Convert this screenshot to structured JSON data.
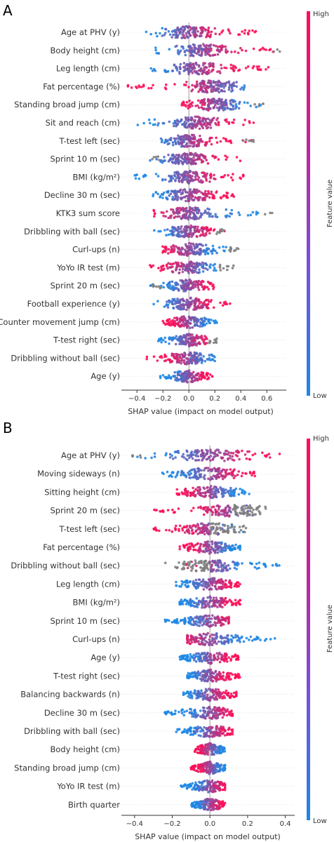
{
  "colors": {
    "low": "#1e88e5",
    "high": "#ff0d57",
    "missing": "#808080",
    "axis": "#333333",
    "zero_line": "#999999"
  },
  "chart_data": [
    {
      "type": "scatter",
      "panel": "A",
      "xlabel": "SHAP value (impact on model output)",
      "xlim": [
        -0.52,
        0.75
      ],
      "xticks": [
        -0.4,
        -0.2,
        0.0,
        0.2,
        0.4,
        0.6
      ],
      "xtick_labels": [
        "−0.4",
        "−0.2",
        "0.0",
        "0.2",
        "0.4",
        "0.6"
      ],
      "colorbar": {
        "label": "Feature value",
        "high": "High",
        "low": "Low"
      },
      "features": [
        {
          "name": "Age at PHV (y)",
          "min": -0.34,
          "max": 0.52,
          "split": 0.0,
          "lowSide": "neg"
        },
        {
          "name": "Body height (cm)",
          "min": -0.28,
          "max": 0.71,
          "split": 0.1,
          "lowSide": "neg",
          "grey": [
            0.65,
            0.72
          ]
        },
        {
          "name": "Leg length (cm)",
          "min": -0.31,
          "max": 0.62,
          "split": 0.05,
          "lowSide": "neg"
        },
        {
          "name": "Fat percentage (%)",
          "min": -0.48,
          "max": 0.44,
          "split": 0.18,
          "lowSide": "pos"
        },
        {
          "name": "Standing broad jump (cm)",
          "min": -0.08,
          "max": 0.58,
          "split": 0.2,
          "lowSide": "pos",
          "grey": [
            0.48,
            0.58
          ]
        },
        {
          "name": "Sit and reach (cm)",
          "min": -0.4,
          "max": 0.5,
          "split": 0.05,
          "lowSide": "neg"
        },
        {
          "name": "T-test left (sec)",
          "min": -0.22,
          "max": 0.5,
          "split": 0.0,
          "lowSide": "neg",
          "grey": [
            0.4,
            0.5
          ]
        },
        {
          "name": "Sprint 10 m (sec)",
          "min": -0.36,
          "max": 0.4,
          "split": 0.0,
          "lowSide": "neg",
          "grey": [
            -0.36,
            -0.22
          ]
        },
        {
          "name": "BMI (kg/m²)",
          "min": -0.42,
          "max": 0.42,
          "split": 0.0,
          "lowSide": "neg"
        },
        {
          "name": "Decline 30 m (sec)",
          "min": -0.3,
          "max": 0.35,
          "split": 0.0,
          "lowSide": "neg"
        },
        {
          "name": "KTK3 sum score",
          "min": -0.3,
          "max": 0.68,
          "split": 0.0,
          "lowSide": "pos",
          "grey": [
            0.57,
            0.68
          ]
        },
        {
          "name": "Dribbling with ball (sec)",
          "min": -0.28,
          "max": 0.28,
          "split": 0.0,
          "lowSide": "neg",
          "grey": [
            0.2,
            0.28
          ]
        },
        {
          "name": "Curl-ups (n)",
          "min": -0.24,
          "max": 0.38,
          "split": 0.0,
          "lowSide": "pos",
          "grey": [
            0.28,
            0.38
          ]
        },
        {
          "name": "YoYo IR test (m)",
          "min": -0.3,
          "max": 0.35,
          "split": 0.0,
          "lowSide": "pos",
          "grey": [
            0.22,
            0.35
          ]
        },
        {
          "name": "Sprint 20 m (sec)",
          "min": -0.3,
          "max": 0.2,
          "split": 0.0,
          "lowSide": "neg",
          "grey": [
            -0.3,
            -0.2
          ]
        },
        {
          "name": "Football experience (y)",
          "min": -0.28,
          "max": 0.32,
          "split": 0.0,
          "lowSide": "neg"
        },
        {
          "name": "Counter movement jump (cm)",
          "min": -0.2,
          "max": 0.22,
          "split": 0.0,
          "lowSide": "pos"
        },
        {
          "name": "T-test right (sec)",
          "min": -0.24,
          "max": 0.22,
          "split": 0.0,
          "lowSide": "neg",
          "grey": [
            0.15,
            0.22
          ]
        },
        {
          "name": "Dribbling without ball (sec)",
          "min": -0.34,
          "max": 0.2,
          "split": 0.0,
          "lowSide": "pos"
        },
        {
          "name": "Age (y)",
          "min": -0.22,
          "max": 0.18,
          "split": 0.0,
          "lowSide": "neg"
        }
      ]
    },
    {
      "type": "scatter",
      "panel": "B",
      "xlabel": "SHAP value (impact on model output)",
      "xlim": [
        -0.47,
        0.45
      ],
      "xticks": [
        -0.4,
        -0.2,
        0.0,
        0.2,
        0.4
      ],
      "xtick_labels": [
        "−0.4",
        "−0.2",
        "0.0",
        "0.2",
        "0.4"
      ],
      "colorbar": {
        "label": "Feature value",
        "high": "High",
        "low": "Low"
      },
      "features": [
        {
          "name": "Age at PHV (y)",
          "min": -0.43,
          "max": 0.37,
          "split": 0.0,
          "lowSide": "neg",
          "grey": [
            -0.43,
            -0.35
          ]
        },
        {
          "name": "Moving sideways  (n)",
          "min": -0.26,
          "max": 0.24,
          "split": 0.0,
          "lowSide": "neg"
        },
        {
          "name": "Sitting height (cm)",
          "min": -0.18,
          "max": 0.22,
          "split": 0.0,
          "lowSide": "pos"
        },
        {
          "name": "Sprint 20 m (sec)",
          "min": -0.3,
          "max": 0.3,
          "split": 0.12,
          "lowSide": "pos",
          "grey": [
            0.12,
            0.3
          ]
        },
        {
          "name": "T-test left (sec)",
          "min": -0.3,
          "max": 0.2,
          "split": 0.0,
          "lowSide": "pos",
          "grey": [
            0.0,
            0.2
          ]
        },
        {
          "name": "Fat percentage (%)",
          "min": -0.16,
          "max": 0.16,
          "split": 0.0,
          "lowSide": "pos"
        },
        {
          "name": "Dribbling without ball (sec)",
          "min": -0.24,
          "max": 0.4,
          "split": 0.0,
          "lowSide": "pos",
          "grey": [
            -0.24,
            0.0
          ]
        },
        {
          "name": "Leg length (cm)",
          "min": -0.18,
          "max": 0.16,
          "split": 0.0,
          "lowSide": "neg"
        },
        {
          "name": "BMI (kg/m²)",
          "min": -0.16,
          "max": 0.16,
          "split": 0.0,
          "lowSide": "neg"
        },
        {
          "name": "Sprint 10 m (sec)",
          "min": -0.24,
          "max": 0.1,
          "split": 0.0,
          "lowSide": "neg"
        },
        {
          "name": "Curl-ups  (n)",
          "min": -0.12,
          "max": 0.38,
          "split": 0.0,
          "lowSide": "pos"
        },
        {
          "name": "Age (y)",
          "min": -0.16,
          "max": 0.15,
          "split": 0.0,
          "lowSide": "neg"
        },
        {
          "name": "T-test right (sec)",
          "min": -0.12,
          "max": 0.16,
          "split": 0.0,
          "lowSide": "neg"
        },
        {
          "name": "Balancing backwards  (n)",
          "min": -0.14,
          "max": 0.14,
          "split": 0.0,
          "lowSide": "neg"
        },
        {
          "name": "Decline 30 m (sec)",
          "min": -0.24,
          "max": 0.12,
          "split": 0.0,
          "lowSide": "neg"
        },
        {
          "name": "Dribbling with ball (sec)",
          "min": -0.18,
          "max": 0.12,
          "split": 0.0,
          "lowSide": "neg"
        },
        {
          "name": "Body height (cm)",
          "min": -0.08,
          "max": 0.08,
          "split": 0.0,
          "lowSide": "pos"
        },
        {
          "name": "Standing broad jump (cm)",
          "min": -0.1,
          "max": 0.08,
          "split": 0.0,
          "lowSide": "pos"
        },
        {
          "name": "YoYo IR test (m)",
          "min": -0.16,
          "max": 0.08,
          "split": 0.0,
          "lowSide": "neg"
        },
        {
          "name": "Birth quarter",
          "min": -0.1,
          "max": 0.08,
          "split": 0.0,
          "lowSide": "neg"
        }
      ]
    }
  ]
}
